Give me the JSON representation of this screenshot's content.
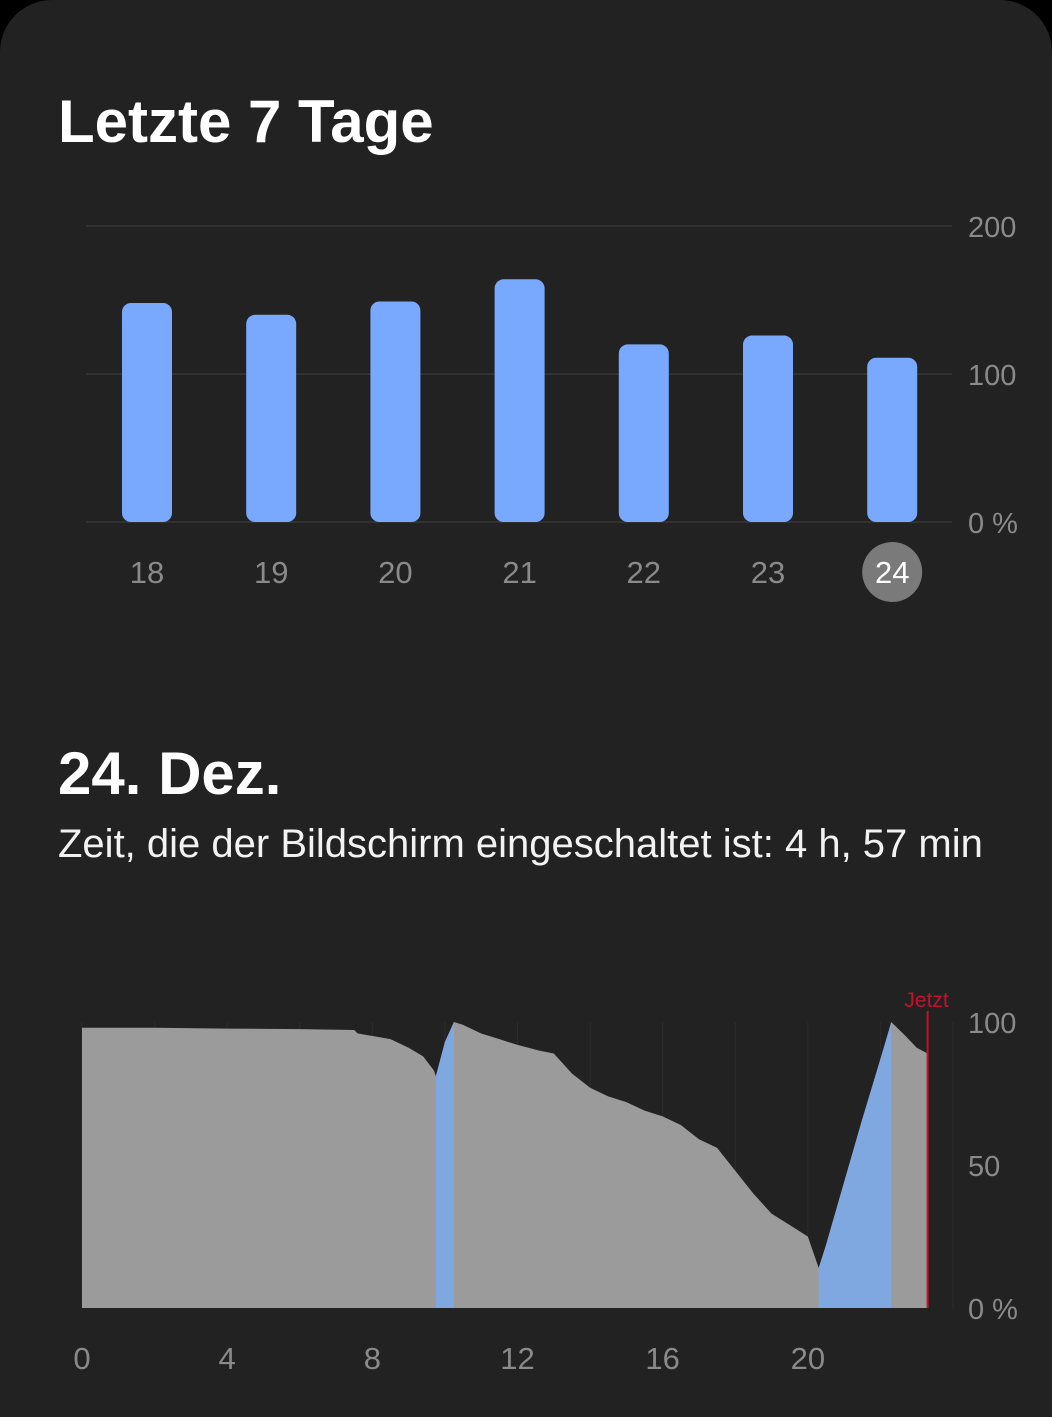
{
  "weekly": {
    "title": "Letzte 7 Tage",
    "chart_data": {
      "type": "bar",
      "categories": [
        "18",
        "19",
        "20",
        "21",
        "22",
        "23",
        "24"
      ],
      "values": [
        148,
        140,
        149,
        164,
        120,
        126,
        111
      ],
      "yticks": [
        "0 %",
        "100",
        "200"
      ],
      "ylim": [
        0,
        200
      ],
      "selected": "24",
      "colors": {
        "bar": "#78A9FF",
        "selected_badge": "#7a7a7a"
      }
    }
  },
  "daily": {
    "title": "24. Dez.",
    "screen_on_text": "Zeit, die der Bildschirm eingeschaltet ist: 4 h, 57 min",
    "chart_data": {
      "type": "area",
      "xlabel": "",
      "ylabel": "",
      "xticks": [
        "0",
        "4",
        "8",
        "12",
        "16",
        "20"
      ],
      "yticks": [
        "0 %",
        "50",
        "100"
      ],
      "xlim": [
        0,
        24
      ],
      "ylim": [
        0,
        100
      ],
      "now_label": "Jetzt",
      "now_hour": 23.3,
      "battery_level": [
        [
          0,
          98
        ],
        [
          2,
          98
        ],
        [
          4,
          97.7
        ],
        [
          6,
          97.5
        ],
        [
          7.5,
          97.2
        ],
        [
          7.6,
          96
        ],
        [
          8.5,
          94
        ],
        [
          9,
          91
        ],
        [
          9.4,
          88
        ],
        [
          9.7,
          83
        ],
        [
          9.75,
          81
        ],
        [
          10.0,
          93
        ],
        [
          10.25,
          100
        ],
        [
          10.5,
          99
        ],
        [
          11,
          96
        ],
        [
          11.5,
          94
        ],
        [
          12,
          92
        ],
        [
          12.6,
          90
        ],
        [
          13,
          89
        ],
        [
          13.5,
          82
        ],
        [
          14,
          77
        ],
        [
          14.5,
          74
        ],
        [
          15,
          72
        ],
        [
          15.5,
          69
        ],
        [
          16,
          67
        ],
        [
          16.5,
          64
        ],
        [
          17,
          59
        ],
        [
          17.5,
          56
        ],
        [
          18,
          48
        ],
        [
          18.5,
          40
        ],
        [
          19,
          33
        ],
        [
          19.5,
          29
        ],
        [
          20,
          25
        ],
        [
          20.3,
          14
        ],
        [
          20.5,
          22
        ],
        [
          21,
          44
        ],
        [
          21.5,
          66
        ],
        [
          22,
          87
        ],
        [
          22.3,
          100
        ],
        [
          22.7,
          95
        ],
        [
          23,
          91
        ],
        [
          23.3,
          89
        ]
      ],
      "charging_periods": [
        [
          9.75,
          10.25
        ],
        [
          20.3,
          22.3
        ]
      ],
      "colors": {
        "discharge": "#9b9b9b",
        "charging": "#7fa8e0",
        "now_line": "#c8102e",
        "now_label": "#c8102e"
      }
    }
  }
}
